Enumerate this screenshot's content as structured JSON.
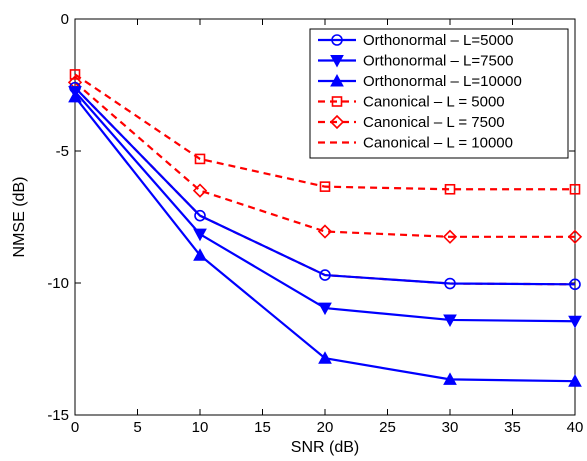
{
  "chart_data": {
    "type": "line",
    "title": "",
    "xlabel": "SNR (dB)",
    "ylabel": "NMSE (dB)",
    "xlim": [
      0,
      40
    ],
    "ylim": [
      -15,
      0
    ],
    "xticks": [
      "0",
      "5",
      "10",
      "15",
      "20",
      "25",
      "30",
      "35",
      "40"
    ],
    "yticks": [
      "0",
      "-5",
      "-10",
      "-15"
    ],
    "grid": false,
    "legend_position": "top-right",
    "x": [
      0,
      10,
      20,
      30,
      40
    ],
    "series": [
      {
        "name": "Orthonormal – L=5000",
        "color": "#0000ff",
        "dash": "solid",
        "marker": "circle",
        "values": [
          -2.6,
          -7.45,
          -9.7,
          -10.02,
          -10.05
        ]
      },
      {
        "name": "Orthonormal – L=7500",
        "color": "#0000ff",
        "dash": "solid",
        "marker": "triangle-down",
        "values": [
          -2.75,
          -8.15,
          -10.95,
          -11.4,
          -11.45
        ]
      },
      {
        "name": "Orthonormal – L=10000",
        "color": "#0000ff",
        "dash": "solid",
        "marker": "triangle-up",
        "values": [
          -2.95,
          -8.95,
          -12.85,
          -13.65,
          -13.72
        ]
      },
      {
        "name": "Canonical – L = 5000",
        "color": "#ff0000",
        "dash": "dashed",
        "marker": "square",
        "values": [
          -2.1,
          -5.3,
          -6.35,
          -6.45,
          -6.45
        ]
      },
      {
        "name": "Canonical – L = 7500",
        "color": "#ff0000",
        "dash": "dashed",
        "marker": "diamond",
        "values": [
          -2.4,
          -6.5,
          -8.05,
          -8.25,
          -8.25
        ]
      },
      {
        "name": "Canonical – L = 10000",
        "color": "#ff0000",
        "dash": "dashed",
        "marker": "none",
        "values": [
          -2.6,
          -7.45,
          -9.7,
          -10.02,
          -10.05
        ]
      }
    ]
  }
}
